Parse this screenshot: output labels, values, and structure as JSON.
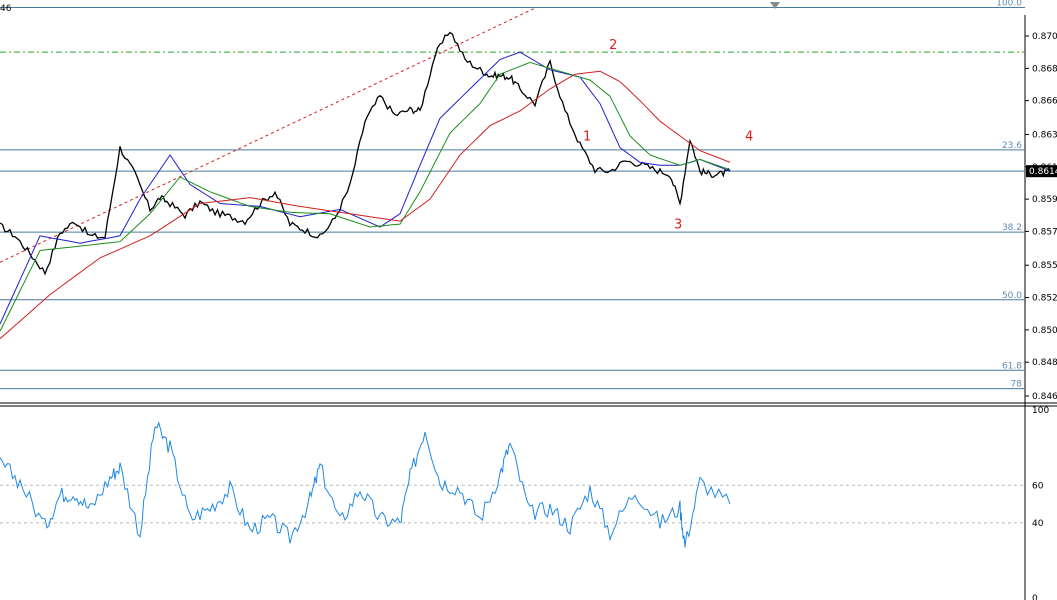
{
  "ticker_fragment": "46",
  "colors": {
    "price": "#000000",
    "ma_blue": "#1f1fd0",
    "ma_green": "#1a8f1a",
    "ma_red": "#d21f1f",
    "fib_line": "#4a7a9c",
    "fib_label": "#5b8bb5",
    "axis": "#000000",
    "grid_dash": "#b8b8b8",
    "trend_dash": "#e02020",
    "green_dash": "#2aa02a",
    "rsi": "#1e88e5",
    "wave_label": "#e02020"
  },
  "price_axis": {
    "ticks": [
      "0.8706",
      "0.8684",
      "0.8662",
      "0.8639",
      "0.8617",
      "0.8595",
      "0.8573",
      "0.8550",
      "0.8528",
      "0.8506",
      "0.8484",
      "0.8461"
    ],
    "current_price": "0.8614"
  },
  "fib_levels": [
    {
      "label": "100.0",
      "price": 0.87254
    },
    {
      "label": "23.6",
      "price": 0.86285
    },
    {
      "label": "38.2",
      "price": 0.85725
    },
    {
      "label": "50.0",
      "price": 0.85265
    },
    {
      "label": "61.8",
      "price": 0.84785
    },
    {
      "label": "78",
      "price": 0.8466
    }
  ],
  "reference_line_price": 0.8695,
  "current_line_price": 0.8614,
  "wave_labels": [
    {
      "text": "1",
      "x": 0.583,
      "price": 0.8635
    },
    {
      "text": "2",
      "x": 0.609,
      "price": 0.8697
    },
    {
      "text": "3",
      "x": 0.674,
      "price": 0.8575
    },
    {
      "text": "4",
      "x": 0.745,
      "price": 0.8635
    }
  ],
  "rsi": {
    "ticks": [
      "100",
      "60",
      "40",
      "0"
    ],
    "levels": [
      60,
      40
    ]
  },
  "chart_data": {
    "type": "line",
    "series": [
      {
        "role": "price",
        "x": [
          0.0,
          0.015,
          0.03,
          0.045,
          0.06,
          0.075,
          0.09,
          0.105,
          0.12,
          0.135,
          0.15,
          0.16,
          0.17,
          0.185,
          0.2,
          0.215,
          0.23,
          0.245,
          0.26,
          0.275,
          0.29,
          0.305,
          0.32,
          0.335,
          0.35,
          0.365,
          0.38,
          0.395,
          0.41,
          0.42,
          0.435,
          0.45,
          0.465,
          0.48,
          0.49,
          0.5,
          0.51,
          0.52,
          0.535,
          0.55,
          0.565,
          0.58,
          0.595,
          0.61,
          0.625,
          0.64,
          0.655,
          0.67,
          0.68,
          0.69,
          0.7,
          0.71,
          0.72,
          0.73
        ],
        "y": [
          0.8577,
          0.857,
          0.8558,
          0.8545,
          0.8572,
          0.858,
          0.857,
          0.8569,
          0.863,
          0.8612,
          0.8588,
          0.8596,
          0.8592,
          0.8584,
          0.8593,
          0.8586,
          0.8583,
          0.858,
          0.8592,
          0.86,
          0.8578,
          0.8574,
          0.8569,
          0.8582,
          0.8604,
          0.8648,
          0.8665,
          0.8652,
          0.8656,
          0.8655,
          0.8693,
          0.871,
          0.869,
          0.8683,
          0.8679,
          0.8679,
          0.8678,
          0.867,
          0.866,
          0.8688,
          0.8655,
          0.8632,
          0.8615,
          0.8614,
          0.8621,
          0.8619,
          0.8615,
          0.8612,
          0.8592,
          0.8636,
          0.8614,
          0.8612,
          0.8612,
          0.8614
        ]
      },
      {
        "role": "ma_blue",
        "x": [
          0.0,
          0.04,
          0.08,
          0.12,
          0.14,
          0.17,
          0.19,
          0.22,
          0.26,
          0.3,
          0.34,
          0.38,
          0.4,
          0.42,
          0.44,
          0.47,
          0.5,
          0.52,
          0.55,
          0.58,
          0.6,
          0.62,
          0.64,
          0.66,
          0.68,
          0.7,
          0.73
        ],
        "y": [
          0.851,
          0.857,
          0.8565,
          0.857,
          0.8595,
          0.8625,
          0.8605,
          0.8592,
          0.859,
          0.8583,
          0.8588,
          0.8576,
          0.8585,
          0.8618,
          0.865,
          0.867,
          0.869,
          0.8695,
          0.8683,
          0.8678,
          0.866,
          0.863,
          0.862,
          0.8618,
          0.8618,
          0.8622,
          0.8614
        ]
      },
      {
        "role": "ma_green",
        "x": [
          0.0,
          0.04,
          0.08,
          0.12,
          0.15,
          0.18,
          0.21,
          0.25,
          0.29,
          0.33,
          0.37,
          0.4,
          0.42,
          0.45,
          0.48,
          0.5,
          0.53,
          0.56,
          0.59,
          0.61,
          0.63,
          0.65,
          0.68,
          0.7,
          0.73
        ],
        "y": [
          0.8505,
          0.856,
          0.8563,
          0.8566,
          0.8585,
          0.861,
          0.86,
          0.859,
          0.8586,
          0.8585,
          0.8576,
          0.8578,
          0.86,
          0.864,
          0.866,
          0.868,
          0.8688,
          0.8682,
          0.8676,
          0.8665,
          0.8638,
          0.8625,
          0.8618,
          0.8622,
          0.8615
        ]
      },
      {
        "role": "ma_red",
        "x": [
          0.0,
          0.05,
          0.1,
          0.15,
          0.2,
          0.25,
          0.3,
          0.35,
          0.4,
          0.43,
          0.46,
          0.49,
          0.52,
          0.55,
          0.575,
          0.6,
          0.62,
          0.64,
          0.66,
          0.68,
          0.7,
          0.73
        ],
        "y": [
          0.85,
          0.853,
          0.8555,
          0.857,
          0.8592,
          0.8596,
          0.859,
          0.8585,
          0.858,
          0.8595,
          0.8625,
          0.8645,
          0.8655,
          0.867,
          0.868,
          0.8682,
          0.8675,
          0.8662,
          0.8648,
          0.8638,
          0.8628,
          0.862
        ]
      },
      {
        "role": "rsi",
        "x": [
          0.0,
          0.02,
          0.045,
          0.06,
          0.075,
          0.09,
          0.11,
          0.12,
          0.14,
          0.155,
          0.17,
          0.19,
          0.21,
          0.23,
          0.25,
          0.27,
          0.29,
          0.31,
          0.32,
          0.34,
          0.36,
          0.38,
          0.4,
          0.41,
          0.425,
          0.44,
          0.46,
          0.48,
          0.5,
          0.51,
          0.53,
          0.55,
          0.57,
          0.59,
          0.61,
          0.635,
          0.66,
          0.68,
          0.685,
          0.7,
          0.73
        ],
        "y": [
          72,
          62,
          38,
          55,
          56,
          47,
          64,
          70,
          34,
          92,
          80,
          42,
          48,
          58,
          36,
          42,
          32,
          52,
          70,
          40,
          58,
          42,
          40,
          64,
          90,
          62,
          58,
          42,
          66,
          82,
          45,
          48,
          38,
          58,
          35,
          57,
          40,
          48,
          28,
          62,
          50
        ]
      }
    ],
    "ylim": [
      0.845,
      0.873
    ],
    "rsi_ylim": [
      0,
      100
    ],
    "grid": false,
    "legend": "none"
  }
}
